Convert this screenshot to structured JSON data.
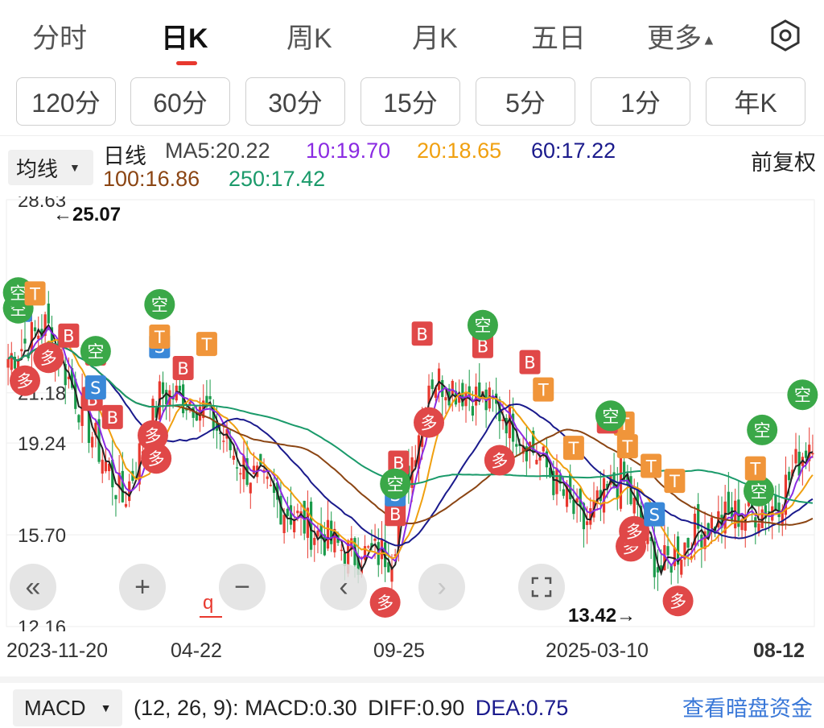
{
  "top_tabs": [
    {
      "label": "分时"
    },
    {
      "label": "日K"
    },
    {
      "label": "周K"
    },
    {
      "label": "月K"
    },
    {
      "label": "五日"
    },
    {
      "label": "更多"
    }
  ],
  "settings_icon": "hexagon-settings-icon",
  "periods": [
    "120分",
    "60分",
    "30分",
    "15分",
    "5分",
    "1分",
    "年K"
  ],
  "ma": {
    "dropdown": "均线",
    "line_label": "日线",
    "ma5": "MA5:20.22",
    "ma10": "10:19.70",
    "ma20": "20:18.65",
    "ma60": "60:17.22",
    "ma100": "100:16.86",
    "ma250": "250:17.42",
    "adjust": "前复权"
  },
  "colors": {
    "up": "#e8382e",
    "down": "#1a9a4a",
    "ma5": "#222222",
    "ma10": "#8a2be2",
    "ma20": "#f0a010",
    "ma60": "#1a1a8c",
    "ma100": "#8b4513",
    "ma250": "#1a9a6a",
    "link": "#3a78d8"
  },
  "y_labels": [
    "28.63",
    "21.18",
    "19.24",
    "15.70",
    "12.16"
  ],
  "max_label": "←25.07",
  "min_label": "13.42→",
  "q_marker": "q",
  "dates": [
    "2023-11-20",
    "04-22",
    "09-25",
    "2025-03-10",
    "08-12"
  ],
  "macd": {
    "dropdown": "MACD",
    "params": "(12, 26, 9):",
    "macd": "MACD:0.30",
    "diff": "DIFF:0.90",
    "dea": "DEA:0.75",
    "link": "查看暗盘资金"
  },
  "chart_data": {
    "type": "candlestick",
    "y_axis_ticks": [
      28.63,
      21.18,
      19.24,
      15.7,
      12.16
    ],
    "ylim": [
      12.16,
      28.63
    ],
    "x_ticks": [
      "2023-11-20",
      "04-22",
      "09-25",
      "2025-03-10",
      "08-12"
    ],
    "high_marker": 25.07,
    "low_marker": 13.42,
    "close_path": [
      [
        "2023-11-20",
        22.5
      ],
      [
        "2023-12",
        23.8
      ],
      [
        "2024-01",
        20.2
      ],
      [
        "2024-02",
        17.0
      ],
      [
        "2024-03",
        21.2
      ],
      [
        "2024-04-22",
        20.8
      ],
      [
        "2024-05",
        18.6
      ],
      [
        "2024-06",
        17.0
      ],
      [
        "2024-07",
        15.8
      ],
      [
        "2024-08",
        14.9
      ],
      [
        "2024-09-25",
        15.0
      ],
      [
        "2024-10",
        21.8
      ],
      [
        "2024-11",
        21.2
      ],
      [
        "2024-12",
        20.3
      ],
      [
        "2025-01",
        18.4
      ],
      [
        "2025-02",
        16.0
      ],
      [
        "2025-03-10",
        18.0
      ],
      [
        "2025-04",
        14.3
      ],
      [
        "2025-05",
        15.9
      ],
      [
        "2025-06",
        16.5
      ],
      [
        "2025-07",
        16.8
      ],
      [
        "2025-08-12",
        19.6
      ]
    ],
    "series": [
      {
        "name": "MA5",
        "last": 20.22
      },
      {
        "name": "MA10",
        "last": 19.7
      },
      {
        "name": "MA20",
        "last": 18.65
      },
      {
        "name": "MA60",
        "last": 17.22
      },
      {
        "name": "MA100",
        "last": 16.86
      },
      {
        "name": "MA250",
        "last": 17.42
      }
    ]
  }
}
